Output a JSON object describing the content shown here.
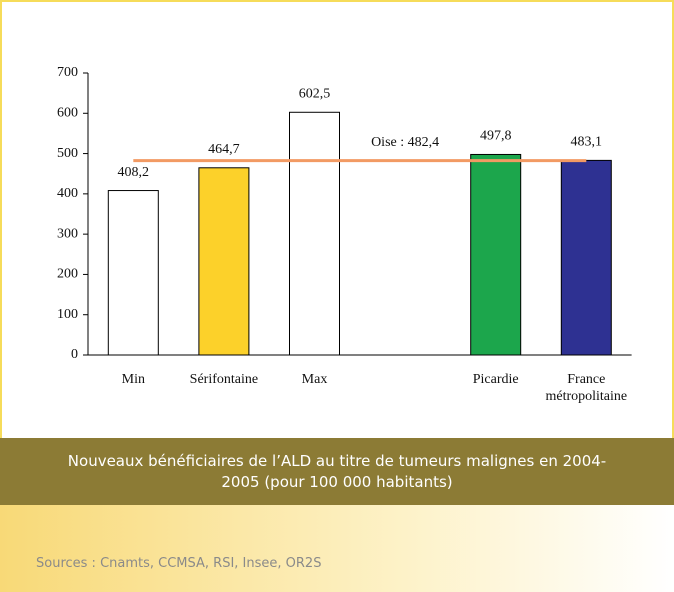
{
  "chart_data": {
    "type": "bar",
    "categories": [
      "Min",
      "Sérifontaine",
      "Max",
      null,
      "Picardie",
      "France métropolitaine"
    ],
    "values": [
      408.2,
      464.7,
      602.5,
      null,
      497.8,
      483.1
    ],
    "value_labels": [
      "408,2",
      "464,7",
      "602,5",
      null,
      "497,8",
      "483,1"
    ],
    "colors": [
      "#ffffff",
      "#fcd12a",
      "#ffffff",
      null,
      "#1ca64c",
      "#2e3192"
    ],
    "ylim": [
      0,
      700
    ],
    "yticks": [
      0,
      100,
      200,
      300,
      400,
      500,
      600,
      700
    ],
    "reference_line": {
      "label": "Oise : 482,4",
      "value": 482.4,
      "color": "#f29a63"
    }
  },
  "caption": "Nouveaux bénéficiaires de l’ALD au titre de tumeurs malignes en 2004-2005 (pour 100 000 habitants)",
  "source": "Sources : Cnamts, CCMSA, RSI, Insee, OR2S"
}
